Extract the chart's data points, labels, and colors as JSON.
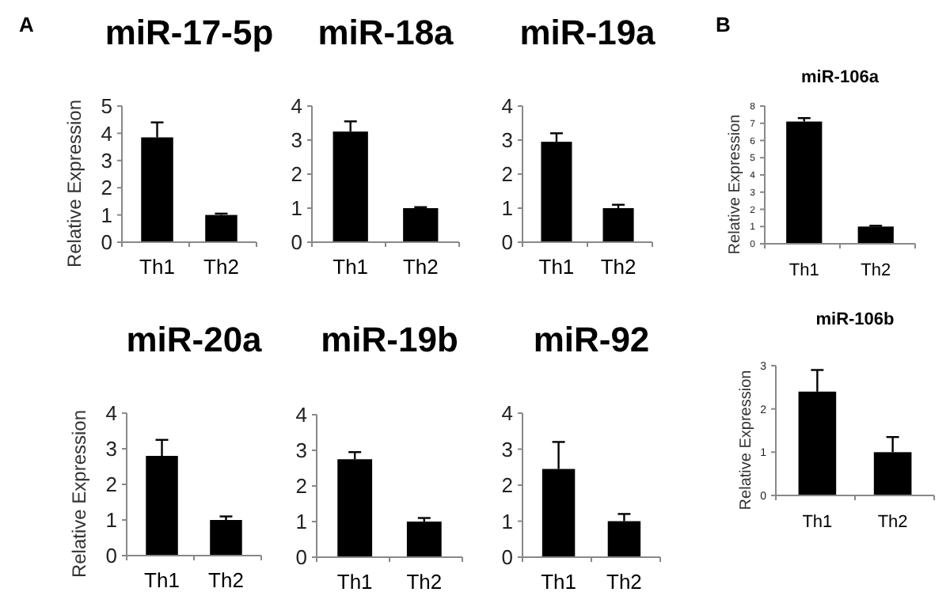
{
  "chart_data": [
    {
      "type": "bar",
      "title": "miR-17-5p",
      "ylabel": "Relative Expression",
      "categories": [
        "Th1",
        "Th2"
      ],
      "values": [
        3.85,
        1.0
      ],
      "errors": [
        0.55,
        0.05
      ],
      "color": "#000000",
      "ylim": [
        0,
        5
      ],
      "yticks": [
        0,
        1,
        2,
        3,
        4,
        5
      ],
      "annotations": [
        "A"
      ]
    },
    {
      "type": "bar",
      "title": "miR-18a",
      "categories": [
        "Th1",
        "Th2"
      ],
      "values": [
        3.25,
        1.0
      ],
      "errors": [
        0.3,
        0.03
      ],
      "color": "#000000",
      "ylim": [
        0,
        4
      ],
      "yticks": [
        0,
        1,
        2,
        3,
        4
      ]
    },
    {
      "type": "bar",
      "title": "miR-19a",
      "categories": [
        "Th1",
        "Th2"
      ],
      "values": [
        2.95,
        1.0
      ],
      "errors": [
        0.25,
        0.1
      ],
      "color": "#000000",
      "ylim": [
        0,
        4
      ],
      "yticks": [
        0,
        1,
        2,
        3,
        4
      ]
    },
    {
      "type": "bar",
      "title": "miR-20a",
      "ylabel": "Relative Expression",
      "categories": [
        "Th1",
        "Th2"
      ],
      "values": [
        2.8,
        1.0
      ],
      "errors": [
        0.45,
        0.1
      ],
      "color": "#000000",
      "ylim": [
        0,
        4
      ],
      "yticks": [
        0,
        1,
        2,
        3,
        4
      ]
    },
    {
      "type": "bar",
      "title": "miR-19b",
      "categories": [
        "Th1",
        "Th2"
      ],
      "values": [
        2.75,
        1.0
      ],
      "errors": [
        0.2,
        0.1
      ],
      "color": "#000000",
      "ylim": [
        0,
        4
      ],
      "yticks": [
        0,
        1,
        2,
        3,
        4
      ]
    },
    {
      "type": "bar",
      "title": "miR-92",
      "categories": [
        "Th1",
        "Th2"
      ],
      "values": [
        2.45,
        1.0
      ],
      "errors": [
        0.75,
        0.2
      ],
      "color": "#000000",
      "ylim": [
        0,
        4
      ],
      "yticks": [
        0,
        1,
        2,
        3,
        4
      ]
    },
    {
      "type": "bar",
      "title": "miR-106a",
      "ylabel": "Relative Expression",
      "categories": [
        "Th1",
        "Th2"
      ],
      "values": [
        7.1,
        1.0
      ],
      "errors": [
        0.2,
        0.05
      ],
      "color": "#000000",
      "ylim": [
        0,
        8
      ],
      "yticks": [
        0,
        1,
        2,
        3,
        4,
        5,
        6,
        7,
        8
      ],
      "annotations": [
        "B"
      ]
    },
    {
      "type": "bar",
      "title": "miR-106b",
      "ylabel": "Relative Expression",
      "categories": [
        "Th1",
        "Th2"
      ],
      "values": [
        2.4,
        1.0
      ],
      "errors": [
        0.5,
        0.35
      ],
      "color": "#000000",
      "ylim": [
        0,
        3
      ],
      "yticks": [
        0,
        1,
        2,
        3
      ]
    }
  ]
}
